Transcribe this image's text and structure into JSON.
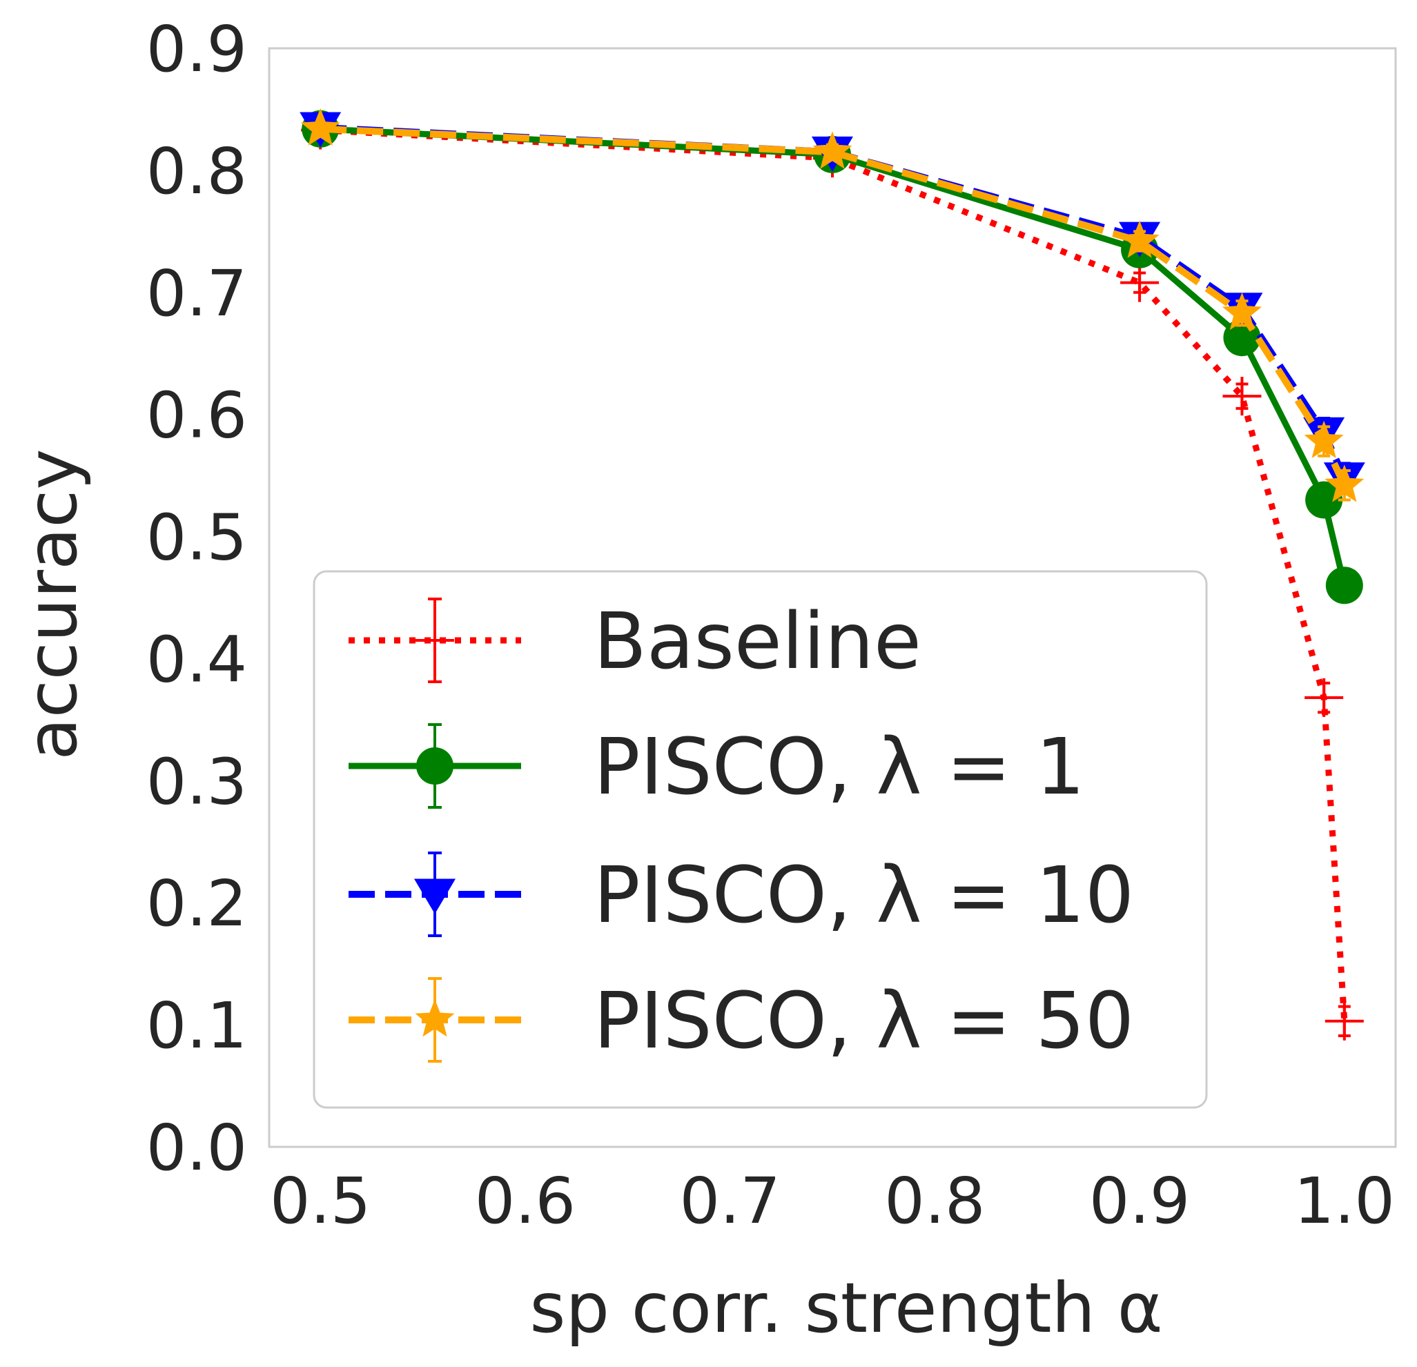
{
  "chart_data": {
    "type": "line",
    "xlabel": "sp corr. strength α",
    "ylabel": "accuracy",
    "xlim": [
      0.475,
      1.025
    ],
    "ylim": [
      0.0,
      0.9
    ],
    "xticks": [
      "0.5",
      "0.6",
      "0.7",
      "0.8",
      "0.9",
      "1.0"
    ],
    "yticks": [
      "0.0",
      "0.1",
      "0.2",
      "0.3",
      "0.4",
      "0.5",
      "0.6",
      "0.7",
      "0.8",
      "0.9"
    ],
    "grid": true,
    "legend_position": "lower-left",
    "x": [
      0.5,
      0.75,
      0.9,
      0.95,
      0.99,
      1.0
    ],
    "series": [
      {
        "name": "Baseline",
        "color": "#ff0000",
        "linestyle": "dotted",
        "marker": "plus",
        "values": [
          0.833,
          0.81,
          0.708,
          0.615,
          0.368,
          0.103
        ],
        "errors": [
          0.004,
          0.006,
          0.008,
          0.01,
          0.012,
          0.012
        ]
      },
      {
        "name": "PISCO, λ = 1",
        "color": "#008000",
        "linestyle": "solid",
        "marker": "circle",
        "values": [
          0.834,
          0.813,
          0.735,
          0.663,
          0.53,
          0.46
        ],
        "errors": [
          0.004,
          0.006,
          0.008,
          0.01,
          0.012,
          0.012
        ]
      },
      {
        "name": "PISCO, λ = 10",
        "color": "#0000ff",
        "linestyle": "dashed",
        "marker": "triangle-down",
        "values": [
          0.835,
          0.815,
          0.745,
          0.687,
          0.585,
          0.548
        ],
        "errors": [
          0.004,
          0.006,
          0.008,
          0.01,
          0.012,
          0.012
        ]
      },
      {
        "name": "PISCO, λ = 50",
        "color": "#ffa500",
        "linestyle": "dashed",
        "marker": "star",
        "values": [
          0.834,
          0.815,
          0.742,
          0.683,
          0.578,
          0.542
        ],
        "errors": [
          0.004,
          0.006,
          0.008,
          0.01,
          0.012,
          0.012
        ]
      }
    ]
  }
}
